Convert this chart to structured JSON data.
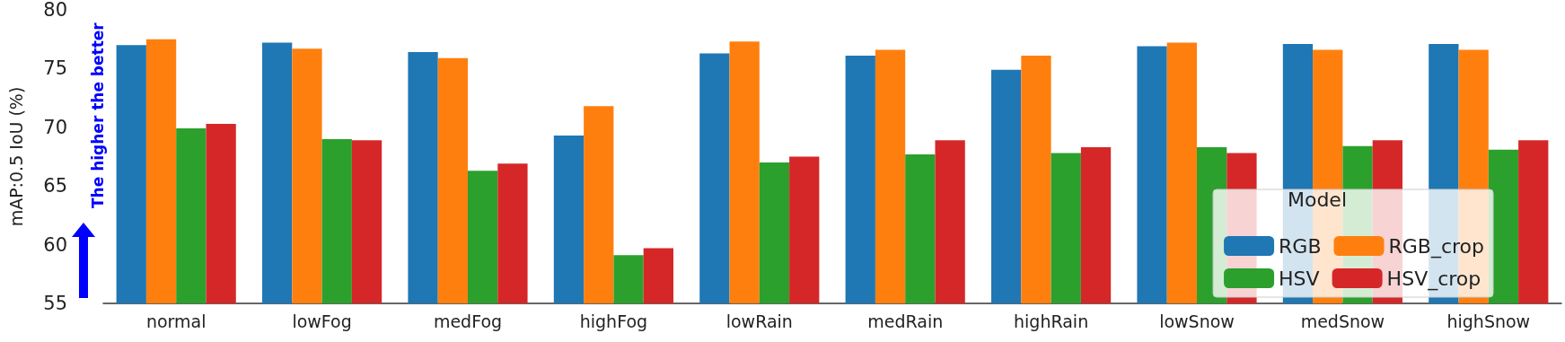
{
  "chart_data": {
    "type": "bar",
    "ylabel": "mAP:0.5 IoU (%)",
    "legend_title": "Model",
    "annotations": [
      "The higher the better"
    ],
    "categories": [
      "normal",
      "lowFog",
      "medFog",
      "highFog",
      "lowRain",
      "medRain",
      "highRain",
      "lowSnow",
      "medSnow",
      "highSnow"
    ],
    "series": [
      {
        "name": "RGB",
        "color": "#1f77b4",
        "values": [
          77.0,
          77.2,
          76.4,
          69.3,
          76.3,
          76.1,
          74.9,
          76.9,
          77.1,
          77.1
        ]
      },
      {
        "name": "RGB_crop",
        "color": "#ff7f0e",
        "values": [
          77.5,
          76.7,
          75.9,
          71.8,
          77.3,
          76.6,
          76.1,
          77.2,
          76.6,
          76.6
        ]
      },
      {
        "name": "HSV",
        "color": "#2ca02c",
        "values": [
          69.9,
          69.0,
          66.3,
          59.1,
          67.0,
          67.7,
          67.8,
          68.3,
          68.4,
          68.1
        ]
      },
      {
        "name": "HSV_crop",
        "color": "#d62728",
        "values": [
          70.3,
          68.9,
          66.9,
          59.7,
          67.5,
          68.9,
          68.3,
          67.8,
          68.9,
          68.9
        ]
      }
    ],
    "ylim": [
      55,
      80
    ],
    "yticks": [
      55,
      60,
      65,
      70,
      75,
      80
    ],
    "grid": false,
    "legend": "bottom right"
  }
}
